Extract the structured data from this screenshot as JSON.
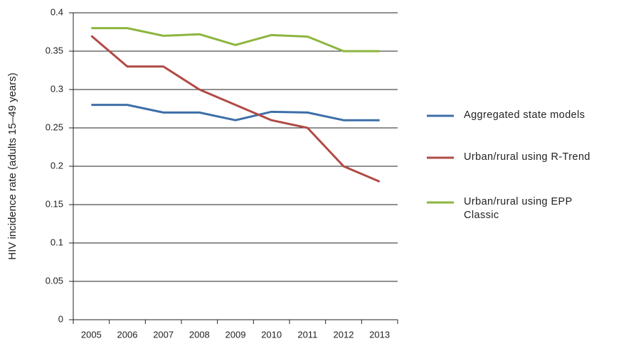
{
  "chart_data": {
    "type": "line",
    "y_label": "HIV incidence rate (adults 15–49 years)",
    "categories": [
      "2005",
      "2006",
      "2007",
      "2008",
      "2009",
      "2010",
      "2011",
      "2012",
      "2013"
    ],
    "series": [
      {
        "name": "Aggregated state models",
        "color": "#3d6fa8",
        "values": [
          0.28,
          0.28,
          0.27,
          0.27,
          0.26,
          0.271,
          0.27,
          0.26,
          0.26
        ]
      },
      {
        "name": "Urban/rural using R-Trend",
        "color": "#b04a45",
        "values": [
          0.37,
          0.33,
          0.33,
          0.3,
          0.28,
          0.26,
          0.25,
          0.2,
          0.18
        ]
      },
      {
        "name": "Urban/rural using EPP Classic",
        "color": "#8db53f",
        "values": [
          0.38,
          0.38,
          0.37,
          0.372,
          0.358,
          0.371,
          0.369,
          0.35,
          0.35
        ]
      }
    ],
    "ylim": [
      0,
      0.4
    ],
    "yticks": [
      0,
      0.05,
      0.1,
      0.15,
      0.2,
      0.25,
      0.3,
      0.35,
      0.4
    ],
    "grid": true,
    "legend": "right"
  }
}
